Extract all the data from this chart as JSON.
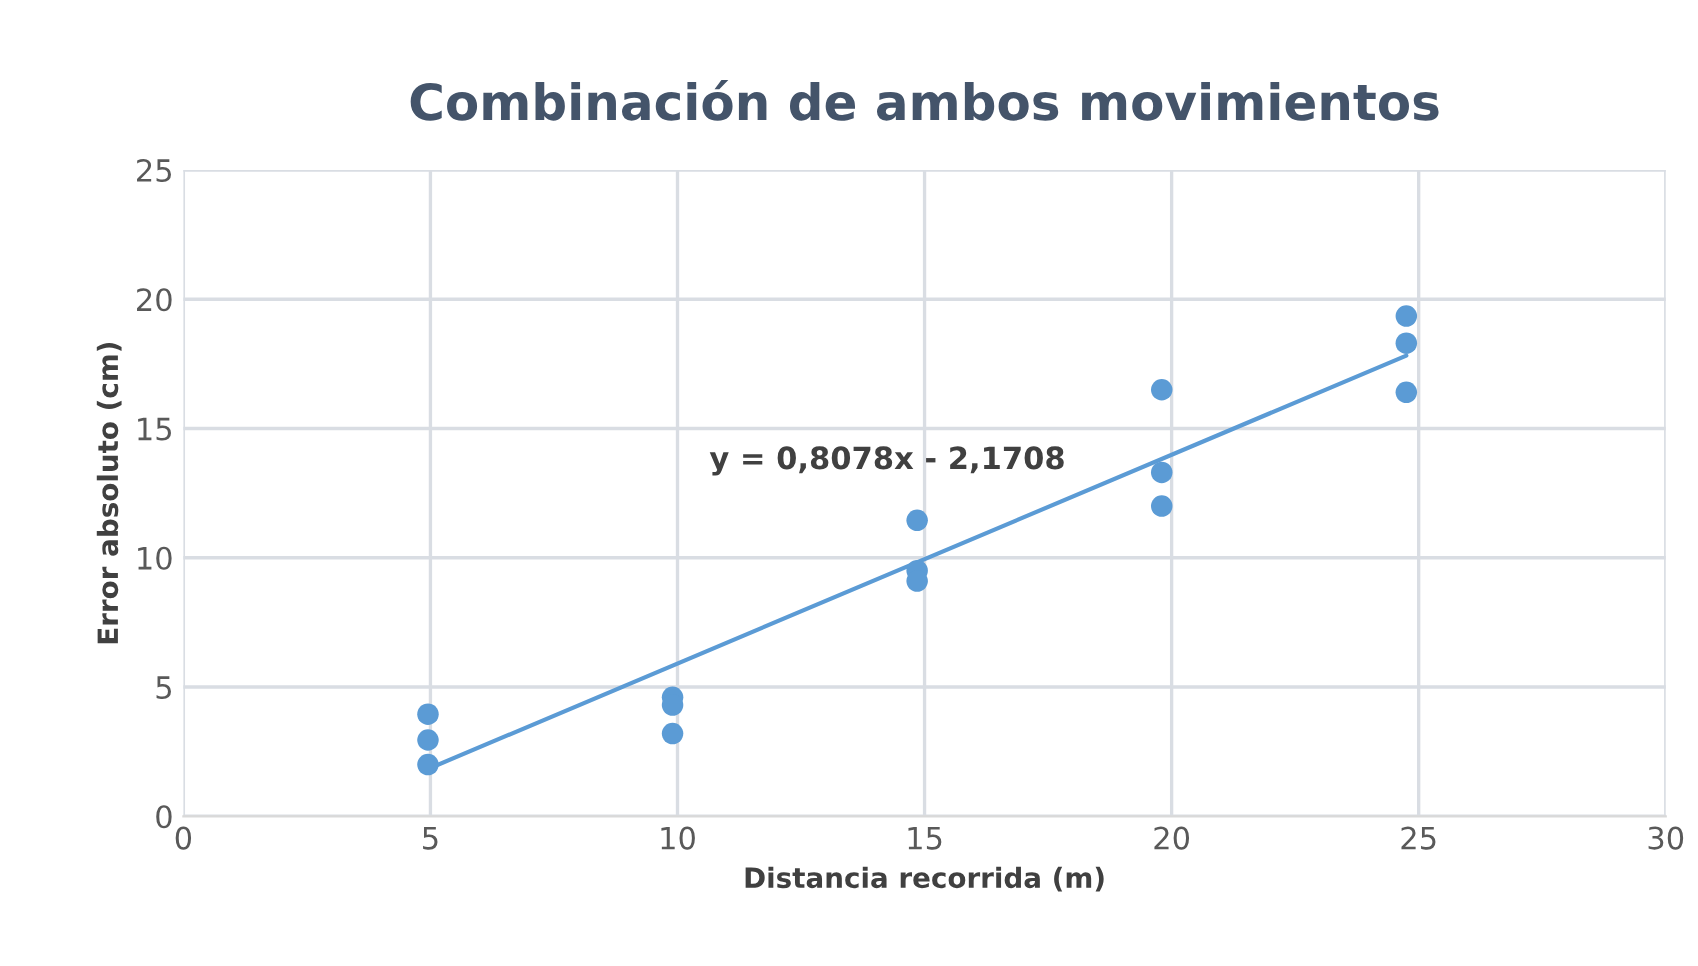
{
  "chart_data": {
    "type": "scatter",
    "title": "Combinación de ambos movimientos",
    "xlabel": "Distancia recorrida (m)",
    "ylabel": "Error absoluto (cm)",
    "series": [
      {
        "marker": "circle",
        "color": "#5b9bd5",
        "x": [
          4.95,
          4.95,
          4.95,
          9.9,
          9.9,
          9.9,
          14.85,
          14.85,
          14.85,
          19.8,
          19.8,
          19.8,
          24.75,
          24.75,
          24.75
        ],
        "values": [
          3.95,
          2.95,
          2.0,
          4.6,
          4.3,
          3.2,
          11.45,
          9.5,
          9.1,
          16.5,
          13.3,
          12.0,
          19.35,
          18.3,
          16.4
        ]
      },
      {
        "type": "line",
        "color": "#5b9bd5",
        "x": [
          4.95,
          24.75
        ],
        "values": [
          1.83,
          17.82
        ]
      }
    ],
    "annotations": [
      "y = 0,8078x - 2,1708"
    ],
    "xlim": [
      0,
      30
    ],
    "xticks": [
      0,
      5,
      10,
      15,
      20,
      25,
      30
    ],
    "ylim": [
      0,
      25
    ],
    "yticks": [
      0,
      5,
      10,
      15,
      20,
      25
    ],
    "grid": true,
    "legend": false
  }
}
